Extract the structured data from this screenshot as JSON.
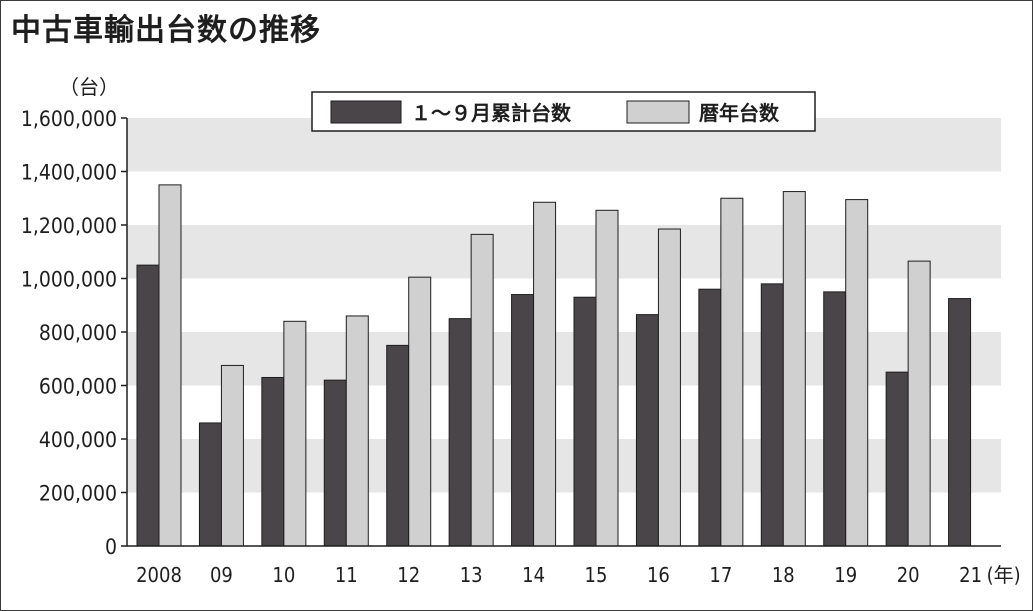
{
  "title": "中古車輸出台数の推移",
  "chart_data": {
    "type": "bar",
    "title": "中古車輸出台数の推移",
    "y_unit": "（台）",
    "x_unit": "(年)",
    "categories": [
      "2008",
      "09",
      "10",
      "11",
      "12",
      "13",
      "14",
      "15",
      "16",
      "17",
      "18",
      "19",
      "20",
      "21"
    ],
    "series": [
      {
        "name": "１～９月累計台数",
        "color": "#4a4549",
        "values": [
          1050000,
          460000,
          630000,
          620000,
          750000,
          850000,
          940000,
          930000,
          865000,
          960000,
          980000,
          950000,
          650000,
          925000
        ]
      },
      {
        "name": "暦年台数",
        "color": "#d0d0d0",
        "values": [
          1350000,
          675000,
          840000,
          860000,
          1005000,
          1165000,
          1285000,
          1255000,
          1185000,
          1300000,
          1325000,
          1295000,
          1065000,
          null
        ]
      }
    ],
    "ylim": [
      0,
      1600000
    ],
    "yticks": [
      "0",
      "200,000",
      "400,000",
      "600,000",
      "800,000",
      "1,000,000",
      "1,200,000",
      "1,400,000",
      "1,600,000"
    ],
    "ytick_values": [
      0,
      200000,
      400000,
      600000,
      800000,
      1000000,
      1200000,
      1400000,
      1600000
    ],
    "grid": "alternating horizontal bands",
    "band_color": "#e6e6e6",
    "legend_position": "top"
  }
}
